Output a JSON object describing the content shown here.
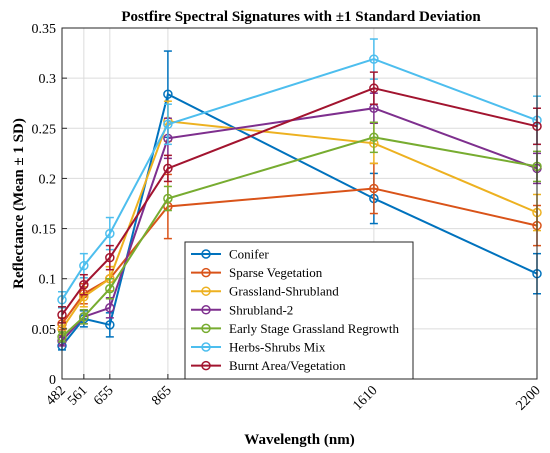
{
  "chart_data": {
    "type": "line",
    "title": "Postfire Spectral Signatures with ±1 Standard Deviation",
    "xlabel": "Wavelength (nm)",
    "ylabel": "Reflectance (Mean ± 1 SD)",
    "x": [
      482,
      561,
      655,
      865,
      1610,
      2200
    ],
    "x_tick_labels": [
      "482",
      "561",
      "655",
      "865",
      "1610",
      "2200"
    ],
    "xlim": [
      482,
      2200
    ],
    "ylim": [
      0,
      0.35
    ],
    "y_ticks": [
      0,
      0.05,
      0.1,
      0.15,
      0.2,
      0.25,
      0.3,
      0.35
    ],
    "y_tick_labels": [
      "0",
      "0.05",
      "0.1",
      "0.15",
      "0.2",
      "0.25",
      "0.3",
      "0.35"
    ],
    "grid": true,
    "legend_position": "bottom-center",
    "series": [
      {
        "name": "Conifer",
        "color": "#0072BD",
        "values": [
          0.033,
          0.06,
          0.054,
          0.284,
          0.18,
          0.105
        ],
        "sd": [
          0.004,
          0.008,
          0.012,
          0.043,
          0.025,
          0.02
        ]
      },
      {
        "name": "Sparse Vegetation",
        "color": "#D95319",
        "values": [
          0.055,
          0.085,
          0.1,
          0.172,
          0.19,
          0.153
        ],
        "sd": [
          0.006,
          0.01,
          0.012,
          0.032,
          0.025,
          0.02
        ]
      },
      {
        "name": "Grassland-Shrubland",
        "color": "#EDB120",
        "values": [
          0.05,
          0.082,
          0.1,
          0.257,
          0.235,
          0.166
        ],
        "sd": [
          0.006,
          0.01,
          0.012,
          0.02,
          0.02,
          0.018
        ]
      },
      {
        "name": "Shrubland-2",
        "color": "#7E2F8E",
        "values": [
          0.038,
          0.062,
          0.071,
          0.24,
          0.27,
          0.21
        ],
        "sd": [
          0.005,
          0.007,
          0.01,
          0.02,
          0.015,
          0.015
        ]
      },
      {
        "name": "Early Stage Grassland Regrowth",
        "color": "#77AC30",
        "values": [
          0.042,
          0.062,
          0.09,
          0.18,
          0.241,
          0.212
        ],
        "sd": [
          0.005,
          0.007,
          0.01,
          0.012,
          0.015,
          0.015
        ]
      },
      {
        "name": "Herbs-Shrubs Mix",
        "color": "#4DBEEE",
        "values": [
          0.079,
          0.113,
          0.145,
          0.254,
          0.319,
          0.258
        ],
        "sd": [
          0.008,
          0.012,
          0.016,
          0.02,
          0.02,
          0.024
        ]
      },
      {
        "name": "Burnt Area/Vegetation",
        "color": "#A2142F",
        "values": [
          0.064,
          0.094,
          0.121,
          0.21,
          0.29,
          0.252
        ],
        "sd": [
          0.008,
          0.01,
          0.012,
          0.013,
          0.016,
          0.018
        ]
      }
    ]
  }
}
